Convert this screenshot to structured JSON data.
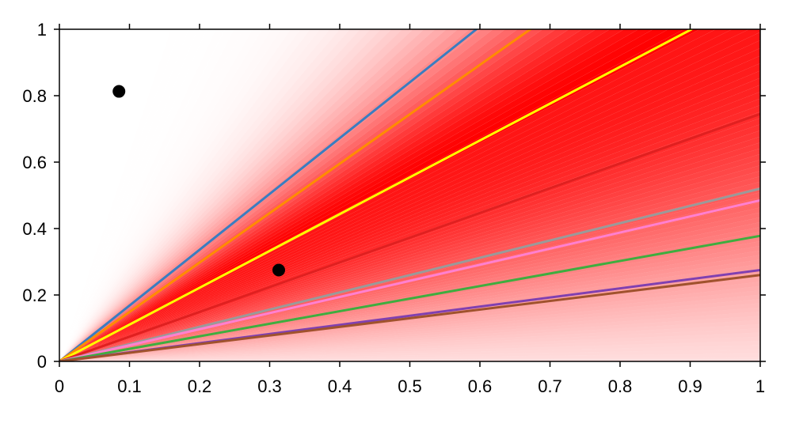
{
  "chart_data": {
    "type": "line",
    "title": "",
    "xlabel": "",
    "ylabel": "",
    "xlim": [
      0,
      1
    ],
    "ylim": [
      0,
      1
    ],
    "x_ticks": [
      0,
      0.1,
      0.2,
      0.3,
      0.4,
      0.5,
      0.6,
      0.7,
      0.8,
      0.9,
      1
    ],
    "x_tick_labels": [
      "0",
      "0.1",
      "0.2",
      "0.3",
      "0.4",
      "0.5",
      "0.6",
      "0.7",
      "0.8",
      "0.9",
      "1"
    ],
    "y_ticks": [
      0,
      0.2,
      0.4,
      0.6,
      0.8,
      1
    ],
    "y_tick_labels": [
      "0",
      "0.2",
      "0.4",
      "0.6",
      "0.8",
      "1"
    ],
    "grid": false,
    "legend": "none",
    "background": {
      "description_kind": "red density shading around rays through origin",
      "color": "#ff0000",
      "peak_slope": 1.1,
      "min_slope": 0.0,
      "max_slope": 2.0
    },
    "series": [
      {
        "color": "#3a7dc0",
        "x": [
          0,
          0.595
        ],
        "y": [
          0,
          1
        ]
      },
      {
        "color": "#ff8c00",
        "x": [
          0,
          0.672
        ],
        "y": [
          0,
          1
        ]
      },
      {
        "color": "#ffff00",
        "x": [
          0,
          0.902
        ],
        "y": [
          0,
          1
        ]
      },
      {
        "color": "#e02020",
        "x": [
          0,
          1
        ],
        "y": [
          0,
          0.745
        ]
      },
      {
        "color": "#9a9a9a",
        "x": [
          0,
          1
        ],
        "y": [
          0,
          0.52
        ]
      },
      {
        "color": "#ff80d0",
        "x": [
          0,
          1
        ],
        "y": [
          0,
          0.485
        ]
      },
      {
        "color": "#3fad3f",
        "x": [
          0,
          1
        ],
        "y": [
          0,
          0.378
        ]
      },
      {
        "color": "#8040b0",
        "x": [
          0,
          1
        ],
        "y": [
          0,
          0.275
        ]
      },
      {
        "color": "#a0522d",
        "x": [
          0,
          1
        ],
        "y": [
          0,
          0.26
        ]
      }
    ],
    "points": [
      {
        "x": 0.085,
        "y": 0.813,
        "color": "#000000"
      },
      {
        "x": 0.313,
        "y": 0.275,
        "color": "#000000"
      }
    ]
  }
}
